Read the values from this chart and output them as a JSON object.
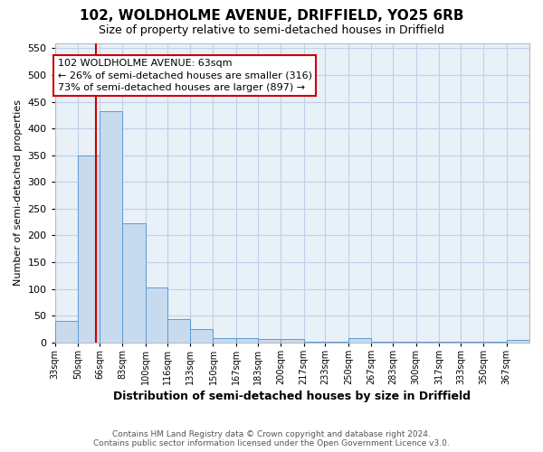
{
  "title": "102, WOLDHOLME AVENUE, DRIFFIELD, YO25 6RB",
  "subtitle": "Size of property relative to semi-detached houses in Driffield",
  "xlabel": "Distribution of semi-detached houses by size in Driffield",
  "ylabel": "Number of semi-detached properties",
  "footer_line1": "Contains HM Land Registry data © Crown copyright and database right 2024.",
  "footer_line2": "Contains public sector information licensed under the Open Government Licence v3.0.",
  "bin_labels": [
    "33sqm",
    "50sqm",
    "66sqm",
    "83sqm",
    "100sqm",
    "116sqm",
    "133sqm",
    "150sqm",
    "167sqm",
    "183sqm",
    "200sqm",
    "217sqm",
    "233sqm",
    "250sqm",
    "267sqm",
    "283sqm",
    "300sqm",
    "317sqm",
    "333sqm",
    "350sqm",
    "367sqm"
  ],
  "bar_values": [
    40,
    350,
    433,
    222,
    102,
    44,
    25,
    8,
    8,
    6,
    6,
    2,
    2,
    8,
    2,
    2,
    2,
    2,
    2,
    2,
    4
  ],
  "bar_color": "#c8daee",
  "bar_edge_color": "#5b9bd5",
  "grid_color": "#c0d0e8",
  "bg_color": "#ffffff",
  "plot_bg_color": "#e8f0f8",
  "property_line_x": 63,
  "property_line_color": "#cc0000",
  "annotation_text_line1": "102 WOLDHOLME AVENUE: 63sqm",
  "annotation_text_line2": "← 26% of semi-detached houses are smaller (316)",
  "annotation_text_line3": "73% of semi-detached houses are larger (897) →",
  "annotation_box_color": "#cc0000",
  "ylim": [
    0,
    560
  ],
  "yticks": [
    0,
    50,
    100,
    150,
    200,
    250,
    300,
    350,
    400,
    450,
    500,
    550
  ],
  "bin_edges": [
    33,
    50,
    66,
    83,
    100,
    116,
    133,
    150,
    167,
    183,
    200,
    217,
    233,
    250,
    267,
    283,
    300,
    317,
    333,
    350,
    367,
    384
  ]
}
